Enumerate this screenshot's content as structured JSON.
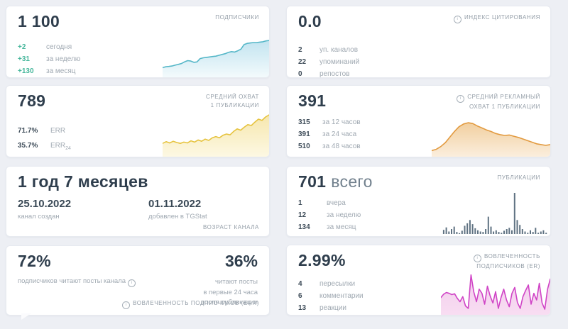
{
  "cards": {
    "subscribers": {
      "value": "1 100",
      "header": "ПОДПИСЧИКИ",
      "rows": [
        {
          "value": "+2",
          "label": "сегодня"
        },
        {
          "value": "+31",
          "label": "за неделю"
        },
        {
          "value": "+130",
          "label": "за месяц"
        }
      ]
    },
    "citation": {
      "value": "0.0",
      "header": "ИНДЕКС ЦИТИРОВАНИЯ",
      "rows": [
        {
          "value": "2",
          "label": "уп. каналов"
        },
        {
          "value": "22",
          "label": "упоминаний"
        },
        {
          "value": "0",
          "label": "репостов"
        }
      ]
    },
    "avg_reach": {
      "value": "789",
      "header_lines": [
        "СРЕДНИЙ ОХВАТ",
        "1 ПУБЛИКАЦИИ"
      ],
      "rows": [
        {
          "value": "71.7%",
          "label": "ERR",
          "sub": ""
        },
        {
          "value": "35.7%",
          "label": "ERR",
          "sub": "24"
        }
      ]
    },
    "ad_reach": {
      "value": "391",
      "header_lines": [
        "СРЕДНИЙ РЕКЛАМНЫЙ",
        "ОХВАТ 1 ПУБЛИКАЦИИ"
      ],
      "rows": [
        {
          "value": "315",
          "label": "за 12 часов"
        },
        {
          "value": "391",
          "label": "за 24 часа"
        },
        {
          "value": "510",
          "label": "за 48 часов"
        }
      ]
    },
    "age": {
      "value": "1 год 7 месяцев",
      "footer": "ВОЗРАСТ КАНАЛА",
      "created": {
        "date": "25.10.2022",
        "label": "канал создан"
      },
      "added": {
        "date": "01.11.2022",
        "label": "добавлен в TGStat"
      }
    },
    "publications": {
      "value": "701",
      "suffix": "всего",
      "header": "ПУБЛИКАЦИИ",
      "rows": [
        {
          "value": "1",
          "label": "вчера"
        },
        {
          "value": "12",
          "label": "за неделю"
        },
        {
          "value": "134",
          "label": "за месяц"
        }
      ]
    },
    "err": {
      "left_value": "72%",
      "left_label": "подписчиков читают посты канала",
      "right_value": "36%",
      "right_lines": [
        "читают посты",
        "в первые 24 часа",
        "после публикации"
      ],
      "footer": "ВОВЛЕЧЕННОСТЬ ПОДПИСЧИКОВ (ERR)"
    },
    "er": {
      "value": "2.99%",
      "header_lines": [
        "ВОВЛЕЧЕННОСТЬ",
        "ПОДПИСЧИКОВ (ER)"
      ],
      "rows": [
        {
          "value": "4",
          "label": "пересылки"
        },
        {
          "value": "6",
          "label": "комментарии"
        },
        {
          "value": "13",
          "label": "реакции"
        }
      ]
    }
  },
  "colors": {
    "accent_green": "#47b79c",
    "big_number": "#2f3e4d",
    "label_gray": "#a0a9b2",
    "header_gray": "#939da7",
    "blue_line": "#55b7c8",
    "yellow_line": "#e6c33e",
    "orange_line": "#e29a3f",
    "pink_line": "#d044c6",
    "bar_gray": "#5f7282"
  },
  "charts": {
    "subscribers": {
      "type": "area",
      "color": "#55b7c8",
      "fill_top": "#c2e4f0",
      "fill_bottom": "#f3fafc",
      "unit": "relative",
      "values": [
        20,
        22,
        23,
        24,
        26,
        28,
        30,
        34,
        37,
        36,
        33,
        34,
        42,
        44,
        45,
        46,
        47,
        48,
        50,
        52,
        54,
        57,
        59,
        58,
        61,
        65,
        76,
        79,
        80,
        81,
        81,
        82,
        83,
        85,
        86
      ]
    },
    "avg_reach": {
      "type": "area",
      "color": "#e6c33e",
      "fill_top": "#f6e7ae",
      "fill_bottom": "#fdf8e3",
      "unit": "relative",
      "values": [
        28,
        32,
        29,
        33,
        30,
        28,
        31,
        29,
        34,
        31,
        36,
        33,
        38,
        35,
        41,
        44,
        41,
        47,
        50,
        48,
        56,
        62,
        59,
        66,
        72,
        70,
        78,
        85,
        82,
        90,
        95
      ]
    },
    "ad_reach": {
      "type": "area",
      "color": "#e29a3f",
      "fill_top": "#f1cf9f",
      "fill_bottom": "#fbeedd",
      "unit": "relative",
      "values": [
        12,
        15,
        22,
        32,
        46,
        60,
        72,
        79,
        82,
        80,
        74,
        69,
        64,
        60,
        55,
        52,
        50,
        51,
        48,
        45,
        41,
        37,
        33,
        29,
        27,
        25,
        27
      ]
    },
    "publications": {
      "type": "bar",
      "color": "#5f7282",
      "unit": "relative",
      "values": [
        10,
        16,
        6,
        12,
        18,
        5,
        2,
        8,
        20,
        26,
        34,
        24,
        14,
        9,
        6,
        5,
        12,
        42,
        18,
        6,
        9,
        5,
        3,
        8,
        12,
        15,
        9,
        100,
        34,
        22,
        12,
        6,
        3,
        9,
        5,
        15,
        3,
        6,
        9,
        3
      ]
    },
    "er": {
      "type": "area",
      "color": "#d044c6",
      "fill_top": "#f2cdec",
      "fill_bottom": "#f8ddf2",
      "unit": "relative",
      "values": [
        38,
        46,
        50,
        48,
        45,
        47,
        36,
        28,
        40,
        18,
        12,
        92,
        52,
        28,
        58,
        48,
        22,
        65,
        42,
        25,
        52,
        12,
        38,
        58,
        32,
        16,
        48,
        62,
        26,
        12,
        40,
        55,
        68,
        22,
        48,
        32,
        72,
        25,
        10,
        58,
        82
      ]
    }
  }
}
